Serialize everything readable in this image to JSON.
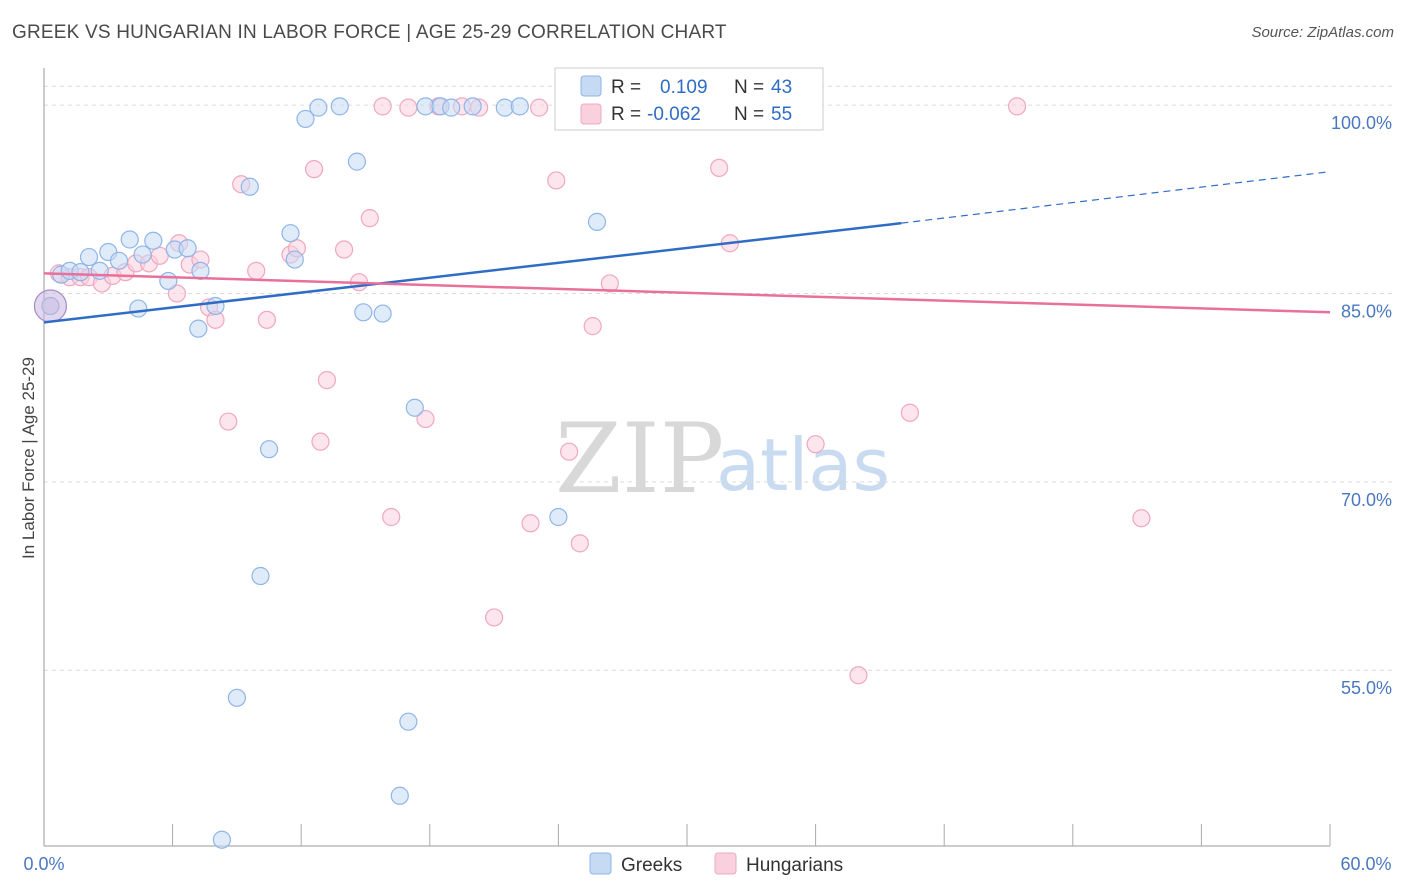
{
  "title": "GREEK VS HUNGARIAN IN LABOR FORCE | AGE 25-29 CORRELATION CHART",
  "source": "Source: ZipAtlas.com",
  "colors": {
    "greeks": "#8fb5e8",
    "greeks_fill": "#c6daf4",
    "greeks_line": "#2f6dc5",
    "hungarians": "#f0a7c0",
    "hungarians_fill": "#f9d0de",
    "hungarians_line": "#e8709a",
    "grid": "#dcdcdc",
    "tick_text": "#4a78c0"
  },
  "legend_top": {
    "greeks": {
      "r_label": "R =",
      "r_value": "0.109",
      "n_label": "N =",
      "n_value": "43"
    },
    "hungarians": {
      "r_label": "R =",
      "r_value": "-0.062",
      "n_label": "N =",
      "n_value": "55"
    }
  },
  "legend_bottom": [
    "Greeks",
    "Hungarians"
  ],
  "watermark": {
    "zip": "ZIP",
    "atlas": "atlas"
  },
  "chart_data": {
    "type": "scatter",
    "ylabel": "In Labor Force | Age 25-29",
    "xlim": [
      0,
      60
    ],
    "ylim": [
      41,
      102
    ],
    "x_tick_labels": [
      "0.0%",
      "60.0%"
    ],
    "y_ticks": [
      100,
      85,
      70,
      55
    ],
    "y_tick_labels": [
      "100.0%",
      "85.0%",
      "70.0%",
      "55.0%"
    ],
    "grid": "horizontal dashed",
    "legend_placement": "top-center",
    "series": [
      {
        "name": "Greeks",
        "points": [
          [
            0.3,
            84.0
          ],
          [
            0.8,
            86.5
          ],
          [
            1.2,
            86.8
          ],
          [
            1.7,
            86.7
          ],
          [
            2.1,
            87.9
          ],
          [
            2.6,
            86.8
          ],
          [
            3.0,
            88.3
          ],
          [
            3.5,
            87.6
          ],
          [
            4.0,
            89.3
          ],
          [
            4.4,
            83.8
          ],
          [
            4.6,
            88.1
          ],
          [
            5.1,
            89.2
          ],
          [
            5.8,
            86.0
          ],
          [
            6.1,
            88.5
          ],
          [
            6.7,
            88.6
          ],
          [
            7.3,
            86.8
          ],
          [
            7.2,
            82.2
          ],
          [
            8.0,
            84.0
          ],
          [
            8.3,
            41.5
          ],
          [
            9.0,
            52.8
          ],
          [
            9.6,
            93.5
          ],
          [
            10.1,
            62.5
          ],
          [
            10.5,
            72.6
          ],
          [
            11.5,
            89.8
          ],
          [
            11.7,
            87.7
          ],
          [
            12.2,
            98.9
          ],
          [
            12.8,
            99.8
          ],
          [
            13.8,
            99.9
          ],
          [
            14.6,
            95.5
          ],
          [
            14.9,
            83.5
          ],
          [
            15.8,
            83.4
          ],
          [
            16.6,
            45.0
          ],
          [
            17.0,
            50.9
          ],
          [
            17.3,
            75.9
          ],
          [
            17.8,
            99.9
          ],
          [
            18.5,
            99.9
          ],
          [
            19.0,
            99.8
          ],
          [
            20.0,
            99.9
          ],
          [
            21.5,
            99.8
          ],
          [
            22.2,
            99.9
          ],
          [
            24.0,
            67.2
          ],
          [
            25.8,
            90.7
          ],
          [
            30.6,
            99.9
          ]
        ],
        "trend": {
          "x": [
            0,
            40
          ],
          "y": [
            82.7,
            90.6
          ],
          "dashed_extension_to": [
            60,
            94.7
          ]
        }
      },
      {
        "name": "Hungarians",
        "points": [
          [
            0.3,
            84.0
          ],
          [
            0.7,
            86.6
          ],
          [
            1.2,
            86.3
          ],
          [
            1.7,
            86.3
          ],
          [
            2.1,
            86.3
          ],
          [
            2.7,
            85.8
          ],
          [
            3.2,
            86.4
          ],
          [
            3.8,
            86.7
          ],
          [
            4.3,
            87.4
          ],
          [
            4.9,
            87.4
          ],
          [
            5.4,
            88.0
          ],
          [
            6.2,
            85.0
          ],
          [
            6.3,
            89.0
          ],
          [
            6.8,
            87.3
          ],
          [
            7.3,
            87.7
          ],
          [
            7.7,
            83.9
          ],
          [
            8.0,
            82.9
          ],
          [
            8.6,
            74.8
          ],
          [
            9.2,
            93.7
          ],
          [
            9.9,
            86.8
          ],
          [
            10.4,
            82.9
          ],
          [
            11.5,
            88.1
          ],
          [
            11.8,
            88.6
          ],
          [
            12.6,
            94.9
          ],
          [
            12.9,
            73.2
          ],
          [
            13.2,
            78.1
          ],
          [
            14.0,
            88.5
          ],
          [
            14.7,
            85.9
          ],
          [
            15.2,
            91.0
          ],
          [
            15.8,
            99.9
          ],
          [
            16.2,
            67.2
          ],
          [
            17.0,
            99.8
          ],
          [
            17.8,
            75.0
          ],
          [
            18.4,
            99.9
          ],
          [
            19.5,
            99.9
          ],
          [
            20.3,
            99.8
          ],
          [
            21.0,
            59.2
          ],
          [
            22.7,
            66.7
          ],
          [
            23.1,
            99.8
          ],
          [
            23.9,
            94.0
          ],
          [
            24.5,
            72.4
          ],
          [
            25.0,
            65.1
          ],
          [
            25.6,
            82.4
          ],
          [
            26.4,
            85.8
          ],
          [
            28.5,
            99.9
          ],
          [
            30.0,
            99.8
          ],
          [
            31.5,
            95.0
          ],
          [
            32.0,
            89.0
          ],
          [
            33.0,
            99.9
          ],
          [
            35.0,
            99.9
          ],
          [
            36.0,
            73.0
          ],
          [
            38.0,
            54.6
          ],
          [
            40.4,
            75.5
          ],
          [
            45.4,
            99.9
          ],
          [
            51.2,
            67.1
          ]
        ],
        "trend": {
          "x": [
            0,
            60
          ],
          "y": [
            86.6,
            83.5
          ]
        }
      }
    ]
  }
}
